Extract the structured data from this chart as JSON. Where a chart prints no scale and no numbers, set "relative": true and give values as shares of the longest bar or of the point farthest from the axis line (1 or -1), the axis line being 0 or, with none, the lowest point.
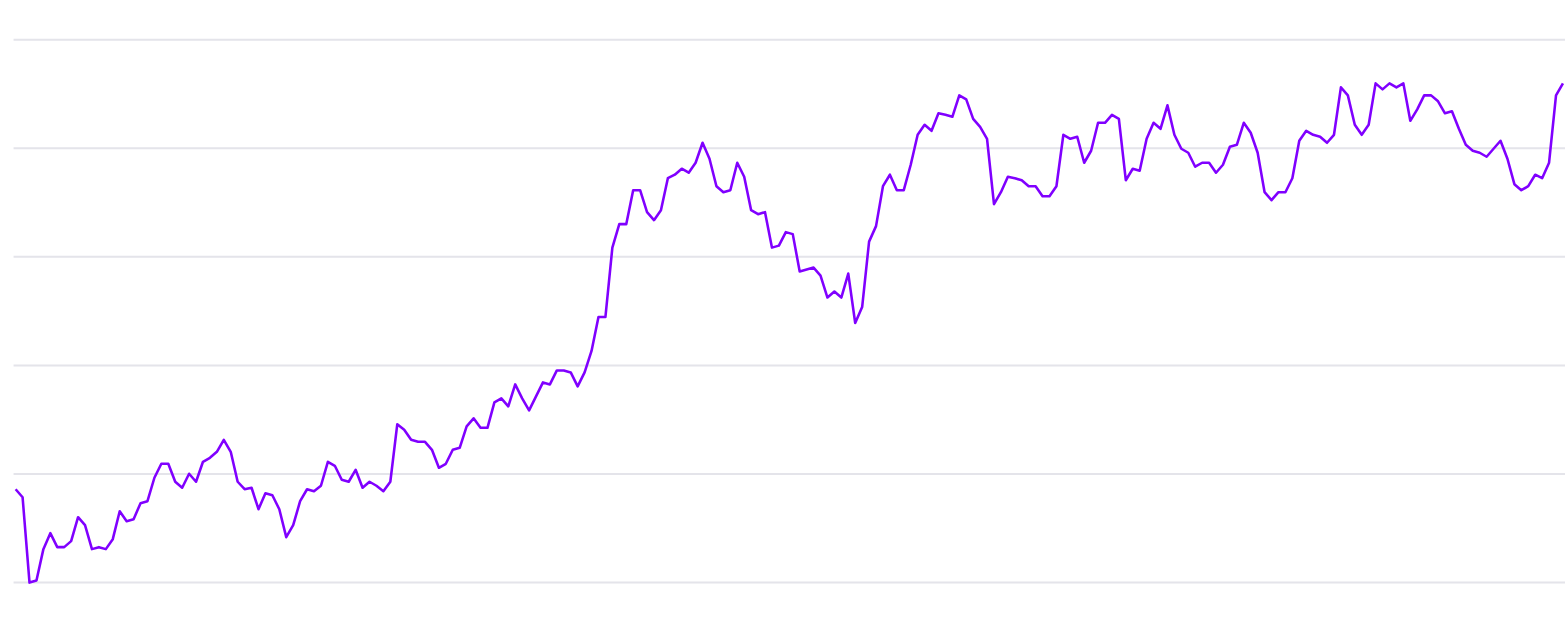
{
  "chart_data": {
    "type": "line",
    "relative": true,
    "grid": "y",
    "color": "#8000ff",
    "marker": "none",
    "line_style": "solid",
    "categories": [
      null,
      null,
      null,
      null,
      null,
      null,
      null,
      null,
      null,
      null,
      null,
      null,
      null,
      null,
      null,
      null,
      null,
      null,
      null,
      null,
      null,
      null,
      null,
      null,
      null,
      null,
      null,
      null,
      null,
      null,
      null,
      null,
      null,
      null,
      null,
      null,
      null,
      null,
      null,
      null,
      null,
      null,
      null,
      null,
      null,
      null,
      null,
      null,
      null,
      null,
      null,
      null,
      null,
      null,
      null,
      null,
      null,
      null,
      null,
      null,
      null,
      null,
      null,
      null,
      null,
      null,
      null,
      null,
      null,
      null,
      null,
      null,
      null,
      null,
      null,
      null,
      null,
      null,
      null,
      null,
      null,
      null,
      null,
      null,
      null,
      null,
      null,
      null,
      null,
      null,
      null,
      null,
      null,
      null,
      null,
      null,
      null,
      null,
      null,
      null,
      null,
      null,
      null,
      null,
      null,
      null,
      null,
      null,
      null,
      null,
      null,
      null,
      null,
      null,
      null,
      null,
      null,
      null,
      null,
      null,
      null,
      null,
      null,
      null,
      null,
      null,
      null,
      null,
      null,
      null,
      null,
      null,
      null,
      null,
      null,
      null,
      null,
      null,
      null,
      null,
      null,
      null,
      null,
      null,
      null,
      null,
      null,
      null,
      null,
      null,
      null,
      null,
      null,
      null,
      null,
      null,
      null,
      null,
      null,
      null,
      null,
      null,
      null,
      null,
      null,
      null,
      null,
      null,
      null,
      null,
      null,
      null,
      null,
      null,
      null,
      null,
      null,
      null,
      null,
      null,
      null,
      null,
      null,
      null,
      null,
      null,
      null,
      null,
      null,
      null,
      null,
      null,
      null,
      null,
      null,
      null,
      null,
      null,
      null,
      null,
      null,
      null,
      null,
      null,
      null,
      null,
      null,
      null,
      null,
      null,
      null,
      null,
      null,
      null,
      null,
      null,
      null,
      null,
      null,
      null,
      null,
      null,
      null,
      null
    ],
    "values": [
      0.187,
      0.171,
      0,
      0.004,
      0.067,
      0.099,
      0.071,
      0.071,
      0.083,
      0.131,
      0.115,
      0.067,
      0.071,
      0.067,
      0.087,
      0.143,
      0.123,
      0.127,
      0.159,
      0.163,
      0.21,
      0.238,
      0.238,
      0.202,
      0.19,
      0.218,
      0.202,
      0.242,
      0.25,
      0.262,
      0.286,
      0.262,
      0.202,
      0.187,
      0.19,
      0.147,
      0.179,
      0.175,
      0.147,
      0.091,
      0.115,
      0.163,
      0.187,
      0.183,
      0.194,
      0.242,
      0.234,
      0.206,
      0.202,
      0.226,
      0.19,
      0.202,
      0.194,
      0.183,
      0.202,
      0.317,
      0.306,
      0.286,
      0.282,
      0.282,
      0.266,
      0.23,
      0.238,
      0.266,
      0.27,
      0.313,
      0.329,
      0.31,
      0.31,
      0.361,
      0.369,
      0.353,
      0.397,
      0.369,
      0.345,
      0.373,
      0.401,
      0.397,
      0.425,
      0.425,
      0.421,
      0.393,
      0.421,
      0.464,
      0.532,
      0.532,
      0.671,
      0.718,
      0.718,
      0.786,
      0.786,
      0.742,
      0.726,
      0.746,
      0.81,
      0.817,
      0.829,
      0.821,
      0.841,
      0.881,
      0.849,
      0.794,
      0.782,
      0.786,
      0.841,
      0.813,
      0.746,
      0.738,
      0.742,
      0.671,
      0.675,
      0.702,
      0.698,
      0.623,
      0.627,
      0.631,
      0.615,
      0.571,
      0.583,
      0.571,
      0.619,
      0.52,
      0.552,
      0.683,
      0.714,
      0.794,
      0.817,
      0.786,
      0.786,
      0.837,
      0.897,
      0.917,
      0.905,
      0.94,
      0.937,
      0.933,
      0.976,
      0.968,
      0.929,
      0.913,
      0.889,
      0.758,
      0.782,
      0.813,
      0.81,
      0.806,
      0.794,
      0.794,
      0.774,
      0.774,
      0.794,
      0.897,
      0.889,
      0.893,
      0.841,
      0.865,
      0.921,
      0.921,
      0.937,
      0.929,
      0.806,
      0.829,
      0.825,
      0.889,
      0.921,
      0.909,
      0.956,
      0.897,
      0.869,
      0.861,
      0.833,
      0.841,
      0.841,
      0.821,
      0.837,
      0.873,
      0.877,
      0.921,
      0.901,
      0.861,
      0.782,
      0.766,
      0.782,
      0.782,
      0.81,
      0.885,
      0.905,
      0.897,
      0.893,
      0.881,
      0.897,
      0.992,
      0.976,
      0.917,
      0.897,
      0.917,
      1,
      0.988,
      1,
      0.992,
      1,
      0.925,
      0.948,
      0.976,
      0.976,
      0.964,
      0.94,
      0.944,
      0.909,
      0.877,
      0.865,
      0.861,
      0.853,
      0.869,
      0.885,
      0.849,
      0.798,
      0.786,
      0.794,
      0.817,
      0.81,
      0.841,
      0.976,
      1
    ]
  }
}
